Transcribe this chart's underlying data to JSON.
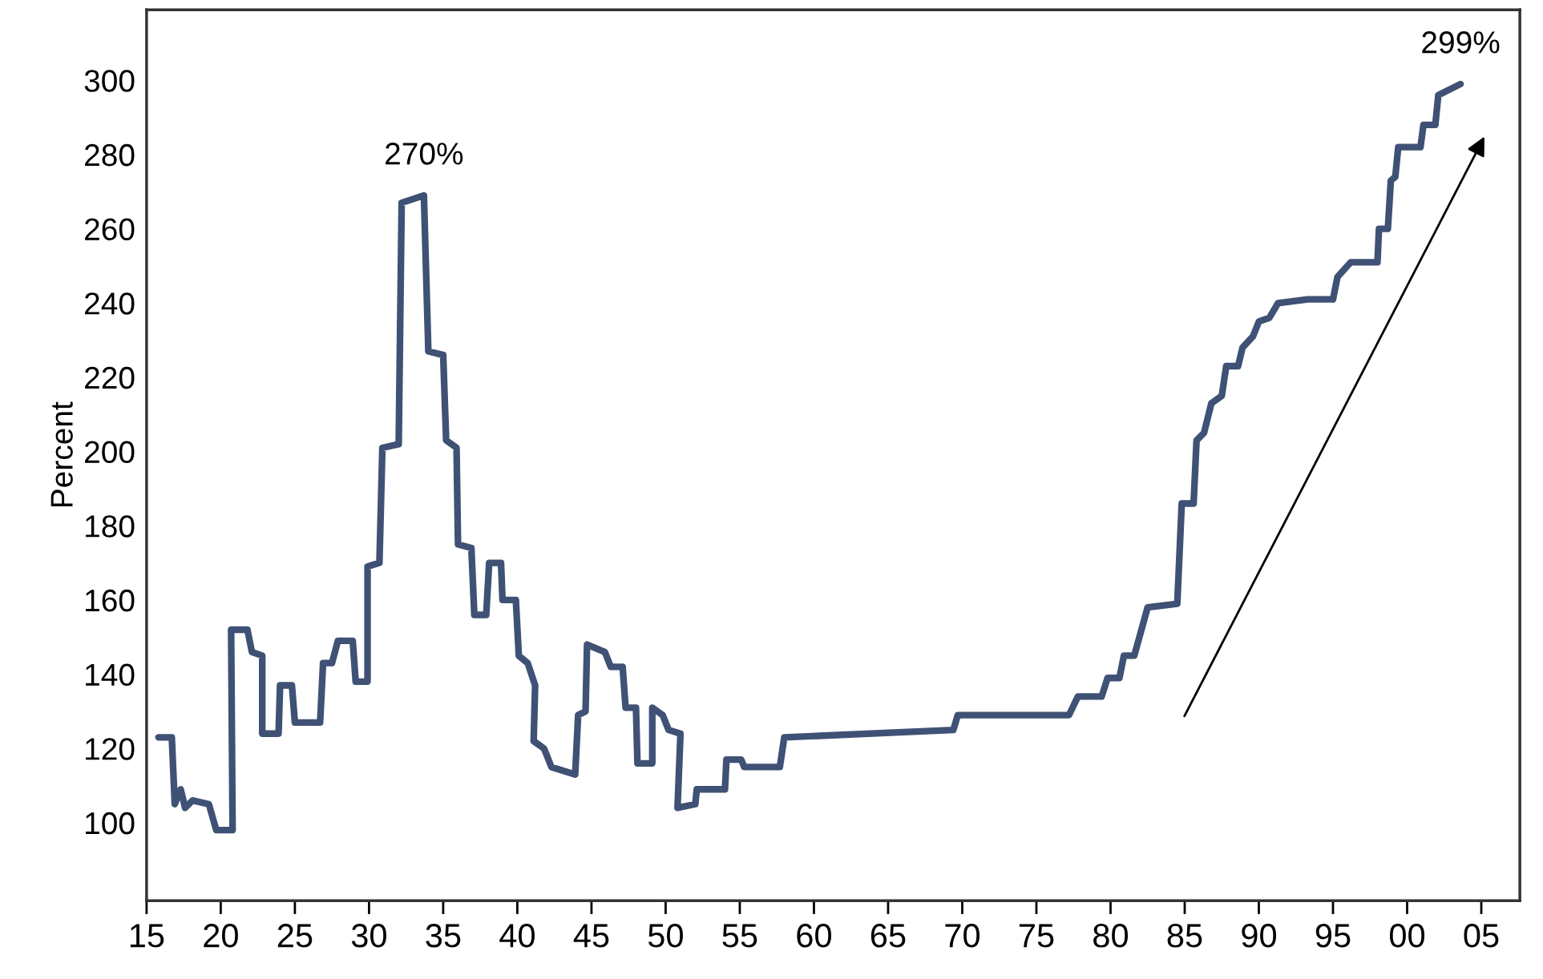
{
  "chart_data": {
    "type": "line",
    "ylabel": "Percent",
    "x": [
      1915.8,
      1916.7,
      1916.9,
      1917.3,
      1917.6,
      1918.1,
      1919.2,
      1919.7,
      1920.8,
      1920.7,
      1921.8,
      1922.1,
      1922.8,
      1922.8,
      1923.9,
      1924.0,
      1924.8,
      1925.0,
      1926.7,
      1926.9,
      1927.5,
      1927.9,
      1928.9,
      1929.1,
      1929.9,
      1929.9,
      1930.7,
      1930.9,
      1932.0,
      1932.2,
      1933.7,
      1934.0,
      1935.0,
      1935.2,
      1935.9,
      1936.0,
      1936.9,
      1937.1,
      1937.9,
      1938.1,
      1938.9,
      1939.0,
      1939.9,
      1940.1,
      1940.7,
      1941.2,
      1941.1,
      1941.8,
      1942.3,
      1943.9,
      1944.1,
      1944.6,
      1944.7,
      1945.9,
      1946.3,
      1947.1,
      1947.3,
      1948.0,
      1948.1,
      1949.1,
      1949.1,
      1949.8,
      1950.2,
      1951.0,
      1950.8,
      1952.0,
      1952.1,
      1954.0,
      1954.1,
      1955.1,
      1955.3,
      1957.7,
      1958.0,
      1969.4,
      1969.7,
      1977.2,
      1977.8,
      1979.4,
      1979.8,
      1980.6,
      1980.9,
      1981.6,
      1982.5,
      1984.5,
      1984.8,
      1985.6,
      1985.8,
      1986.3,
      1986.8,
      1987.5,
      1987.8,
      1988.6,
      1988.9,
      1989.6,
      1990.0,
      1990.7,
      1991.3,
      1993.3,
      1995.0,
      1995.3,
      1996.2,
      1998.0,
      1998.1,
      1998.7,
      1998.9,
      1999.2,
      1999.4,
      2000.9,
      2001.1,
      2001.9,
      2002.1,
      2003.6
    ],
    "series": [
      {
        "color": "#3f5175",
        "values": [
          123,
          123,
          105,
          109,
          104,
          106,
          105,
          98,
          98,
          152,
          152,
          146,
          145,
          124,
          124,
          137,
          137,
          127,
          127,
          143,
          143,
          149,
          149,
          138,
          138,
          169,
          170,
          201,
          202,
          267,
          269,
          227,
          226,
          203,
          201,
          175,
          174,
          156,
          156,
          170,
          170,
          160,
          160,
          145,
          143,
          137,
          122,
          120,
          115,
          113,
          129,
          130,
          148,
          146,
          142,
          142,
          131,
          131,
          116,
          116,
          131,
          129,
          125,
          124,
          104,
          105,
          109,
          109,
          117,
          117,
          115,
          115,
          123,
          125,
          129,
          129,
          134,
          134,
          139,
          139,
          145,
          145,
          158,
          159,
          186,
          186,
          203,
          205,
          213,
          215,
          223,
          223,
          228,
          231,
          235,
          236,
          240,
          241,
          241,
          247,
          251,
          251,
          260,
          260,
          273,
          274,
          282,
          282,
          288,
          288,
          296,
          299
        ]
      }
    ],
    "xlim": [
      1915,
      2007.6
    ],
    "ylim": [
      79,
      319
    ],
    "xticks": [
      {
        "value": 1915,
        "label": "15"
      },
      {
        "value": 1920,
        "label": "20"
      },
      {
        "value": 1925,
        "label": "25"
      },
      {
        "value": 1930,
        "label": "30"
      },
      {
        "value": 1935,
        "label": "35"
      },
      {
        "value": 1940,
        "label": "40"
      },
      {
        "value": 1945,
        "label": "45"
      },
      {
        "value": 1950,
        "label": "50"
      },
      {
        "value": 1955,
        "label": "55"
      },
      {
        "value": 1960,
        "label": "60"
      },
      {
        "value": 1965,
        "label": "65"
      },
      {
        "value": 1970,
        "label": "70"
      },
      {
        "value": 1975,
        "label": "75"
      },
      {
        "value": 1980,
        "label": "80"
      },
      {
        "value": 1985,
        "label": "85"
      },
      {
        "value": 1990,
        "label": "90"
      },
      {
        "value": 1995,
        "label": "95"
      },
      {
        "value": 2000,
        "label": "00"
      },
      {
        "value": 2005,
        "label": "05"
      }
    ],
    "yticks": [
      100,
      120,
      140,
      160,
      180,
      200,
      220,
      240,
      260,
      280,
      300
    ],
    "annotations": [
      {
        "text": "270%",
        "x": 1933.7,
        "y": 269
      },
      {
        "text": "299%",
        "x": 2003.6,
        "y": 299
      }
    ],
    "grid": false,
    "legend": false,
    "marker": "none",
    "line_style": "solid"
  }
}
